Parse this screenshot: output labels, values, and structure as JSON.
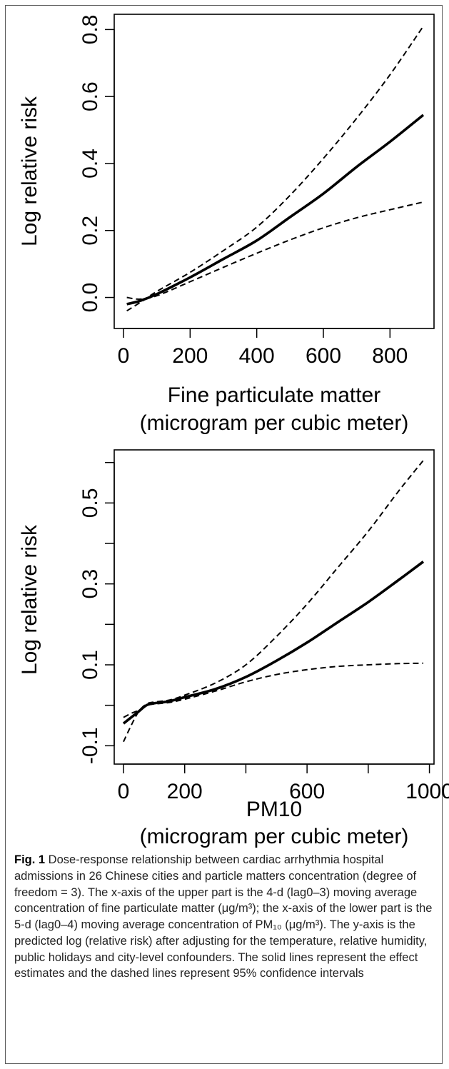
{
  "chart_data": [
    {
      "type": "line",
      "title": "",
      "xlabel": "Fine particulate matter",
      "xlabel2": "(microgram per cubic meter)",
      "ylabel": "Log relative risk",
      "xlim": [
        0,
        900
      ],
      "ylim": [
        -0.05,
        0.82
      ],
      "x_ticks": [
        0,
        200,
        400,
        600,
        800
      ],
      "x_tick_labels": [
        "0",
        "200",
        "400",
        "600",
        "800"
      ],
      "y_ticks": [
        0.0,
        0.2,
        0.4,
        0.6,
        0.8
      ],
      "y_tick_labels": [
        "0.0",
        "0.2",
        "0.4",
        "0.6",
        "0.8"
      ],
      "grid": false,
      "legend": "none",
      "x": [
        10,
        50,
        100,
        200,
        300,
        400,
        500,
        600,
        700,
        800,
        900
      ],
      "series": [
        {
          "style": "solid",
          "values": [
            -0.02,
            -0.01,
            0.01,
            0.06,
            0.115,
            0.17,
            0.24,
            0.31,
            0.39,
            0.465,
            0.545
          ]
        },
        {
          "style": "dashed",
          "values": [
            -0.04,
            -0.015,
            0.018,
            0.075,
            0.14,
            0.21,
            0.305,
            0.415,
            0.535,
            0.665,
            0.81
          ]
        },
        {
          "style": "dashed",
          "values": [
            0.0,
            -0.005,
            0.005,
            0.047,
            0.09,
            0.132,
            0.172,
            0.208,
            0.238,
            0.262,
            0.285
          ]
        }
      ]
    },
    {
      "type": "line",
      "title": "",
      "xlabel": "PM10",
      "xlabel2": "(microgram per cubic meter)",
      "ylabel": "Log relative risk",
      "xlim": [
        0,
        980
      ],
      "ylim": [
        -0.11,
        0.61
      ],
      "x_ticks": [
        0,
        200,
        400,
        600,
        800,
        1000
      ],
      "x_tick_labels": [
        "0",
        "200",
        "",
        "600",
        "",
        "1000"
      ],
      "y_ticks": [
        -0.1,
        0.0,
        0.1,
        0.2,
        0.3,
        0.4,
        0.5,
        0.6
      ],
      "y_tick_labels": [
        "-0.1",
        "",
        "0.1",
        "",
        "0.3",
        "",
        "0.5",
        ""
      ],
      "grid": false,
      "legend": "none",
      "x": [
        0,
        25,
        50,
        75,
        100,
        150,
        200,
        300,
        400,
        500,
        600,
        700,
        800,
        900,
        980
      ],
      "series": [
        {
          "style": "solid",
          "values": [
            -0.045,
            -0.03,
            -0.015,
            0.0,
            0.005,
            0.01,
            0.02,
            0.04,
            0.07,
            0.11,
            0.155,
            0.205,
            0.255,
            0.31,
            0.355
          ]
        },
        {
          "style": "dashed",
          "values": [
            -0.09,
            -0.05,
            -0.015,
            0.003,
            0.008,
            0.013,
            0.025,
            0.055,
            0.1,
            0.17,
            0.25,
            0.34,
            0.43,
            0.53,
            0.605
          ]
        },
        {
          "style": "dashed",
          "values": [
            -0.03,
            -0.02,
            -0.012,
            0.0,
            0.003,
            0.007,
            0.015,
            0.035,
            0.058,
            0.076,
            0.088,
            0.096,
            0.1,
            0.103,
            0.104
          ]
        }
      ]
    }
  ],
  "caption": {
    "label": "Fig. 1",
    "text": " Dose-response relationship between cardiac arrhythmia hospital admissions in 26 Chinese cities and particle matters concentration (degree of freedom = 3). The x-axis of the upper part is the 4-d (lag0–3) moving average concentration of fine particulate matter (μg/m³); the x-axis of the lower part is the 5-d (lag0–4) moving average concentration of PM₁₀ (μg/m³). The y-axis is the predicted log (relative risk) after adjusting for the temperature, relative humidity, public holidays and city-level confounders. The solid lines represent the effect estimates and the dashed lines represent 95% confidence intervals"
  }
}
